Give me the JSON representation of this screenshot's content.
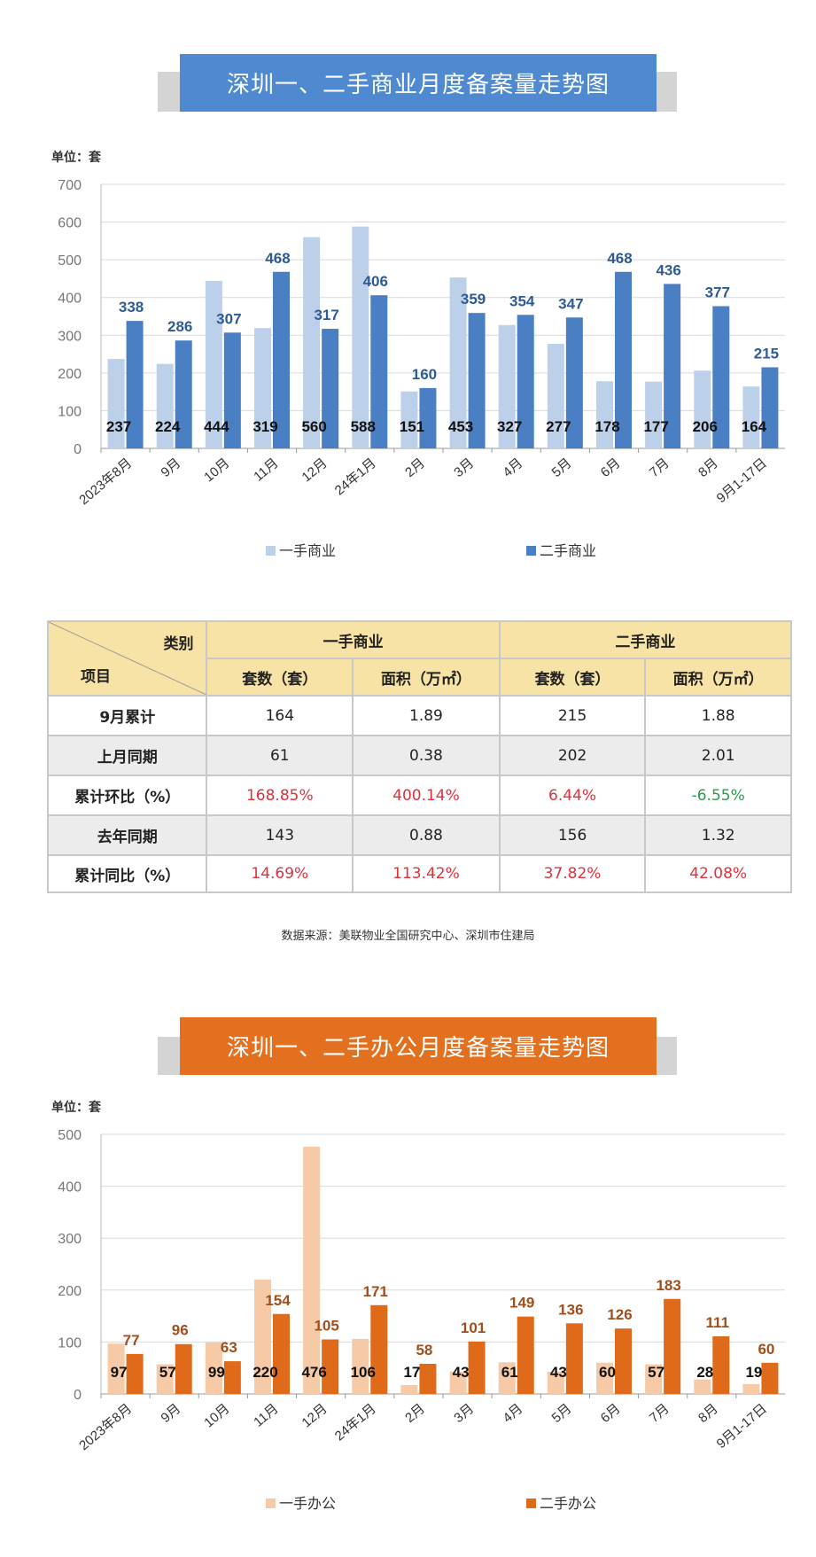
{
  "chart1": {
    "banner_title": "深圳一、二手商业月度备案量走势图",
    "banner_color": "#4f8ad0",
    "unit": "单位：套",
    "chart_data": {
      "type": "bar",
      "categories": [
        "2023年8月",
        "9月",
        "10月",
        "11月",
        "12月",
        "24年1月",
        "2月",
        "3月",
        "4月",
        "5月",
        "6月",
        "7月",
        "8月",
        "9月1-17日"
      ],
      "series": [
        {
          "name": "一手商业",
          "color": "#bcd0ea",
          "values": [
            237,
            224,
            444,
            319,
            560,
            588,
            151,
            453,
            327,
            277,
            178,
            177,
            206,
            164
          ]
        },
        {
          "name": "二手商业",
          "color": "#4a7fc4",
          "values": [
            338,
            286,
            307,
            468,
            317,
            406,
            160,
            359,
            354,
            347,
            468,
            436,
            377,
            215
          ]
        }
      ],
      "yticks": [
        0,
        100,
        200,
        300,
        400,
        500,
        600,
        700
      ],
      "ylim": [
        0,
        700
      ],
      "grid": true,
      "legend": "bottom"
    }
  },
  "table": {
    "corner_top": "类别",
    "corner_bottom": "项目",
    "groups": [
      "一手商业",
      "二手商业"
    ],
    "subheaders": [
      "套数（套）",
      "面积（万㎡）",
      "套数（套）",
      "面积（万㎡）"
    ],
    "rows": [
      {
        "label": "9月累计",
        "cells": [
          "164",
          "1.89",
          "215",
          "1.88"
        ]
      },
      {
        "label": "上月同期",
        "cells": [
          "61",
          "0.38",
          "202",
          "2.01"
        ]
      },
      {
        "label": "累计环比（%）",
        "cells": [
          "168.85%",
          "400.14%",
          "6.44%",
          "-6.55%"
        ]
      },
      {
        "label": "去年同期",
        "cells": [
          "143",
          "0.88",
          "156",
          "1.32"
        ]
      },
      {
        "label": "累计同比（%）",
        "cells": [
          "14.69%",
          "113.42%",
          "37.82%",
          "42.08%"
        ]
      }
    ],
    "source": "数据来源：美联物业全国研究中心、深圳市住建局"
  },
  "chart2": {
    "banner_title": "深圳一、二手办公月度备案量走势图",
    "banner_color": "#e2701f",
    "unit": "单位：套",
    "chart_data": {
      "type": "bar",
      "categories": [
        "2023年8月",
        "9月",
        "10月",
        "11月",
        "12月",
        "24年1月",
        "2月",
        "3月",
        "4月",
        "5月",
        "6月",
        "7月",
        "8月",
        "9月1-17日"
      ],
      "series": [
        {
          "name": "一手办公",
          "color": "#f6caa6",
          "values": [
            97,
            57,
            99,
            220,
            476,
            106,
            17,
            43,
            61,
            43,
            60,
            57,
            28,
            19
          ]
        },
        {
          "name": "二手办公",
          "color": "#de6a1a",
          "values": [
            77,
            96,
            63,
            154,
            105,
            171,
            58,
            101,
            149,
            136,
            126,
            183,
            111,
            60
          ]
        }
      ],
      "yticks": [
        0,
        100,
        200,
        300,
        400,
        500
      ],
      "ylim": [
        0,
        500
      ],
      "grid": true,
      "legend": "bottom"
    }
  }
}
